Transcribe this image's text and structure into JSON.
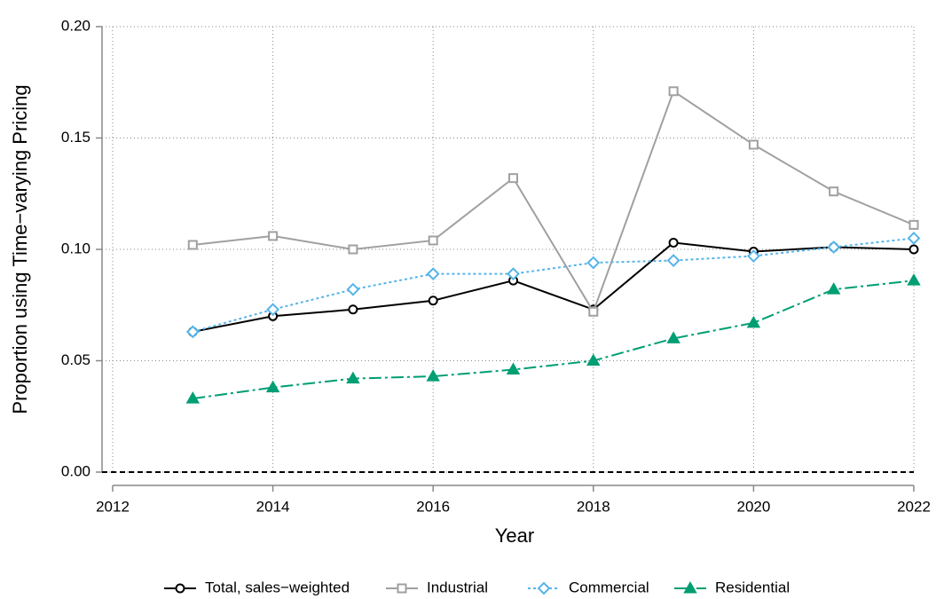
{
  "chart_data": {
    "type": "line",
    "xlabel": "Year",
    "ylabel": "Proportion using Time−varying Pricing",
    "x": [
      2013,
      2014,
      2015,
      2016,
      2017,
      2018,
      2019,
      2020,
      2021,
      2022
    ],
    "series": [
      {
        "name": "Total, sales−weighted",
        "color": "#000000",
        "marker": "circle",
        "dash": "solid",
        "values": [
          0.063,
          0.07,
          0.073,
          0.077,
          0.086,
          0.073,
          0.103,
          0.099,
          0.101,
          0.1
        ]
      },
      {
        "name": "Industrial",
        "color": "#a0a0a0",
        "marker": "square",
        "dash": "solid",
        "values": [
          0.102,
          0.106,
          0.1,
          0.104,
          0.132,
          0.072,
          0.171,
          0.147,
          0.126,
          0.111
        ]
      },
      {
        "name": "Commercial",
        "color": "#56b4e9",
        "marker": "diamond",
        "dash": "dotted",
        "values": [
          0.063,
          0.073,
          0.082,
          0.089,
          0.089,
          0.094,
          0.095,
          0.097,
          0.101,
          0.105
        ]
      },
      {
        "name": "Residential",
        "color": "#009e73",
        "marker": "triangle",
        "dash": "dashdot",
        "values": [
          0.033,
          0.038,
          0.042,
          0.043,
          0.046,
          0.05,
          0.06,
          0.067,
          0.082,
          0.086
        ]
      }
    ],
    "xlim": [
      2012,
      2022
    ],
    "xticks": [
      2012,
      2014,
      2016,
      2018,
      2020,
      2022
    ],
    "ylim": [
      0,
      0.2
    ],
    "yticks": [
      {
        "value": 0,
        "label": "0.00"
      },
      {
        "value": 0.05,
        "label": "0.05"
      },
      {
        "value": 0.1,
        "label": "0.10"
      },
      {
        "value": 0.15,
        "label": "0.15"
      },
      {
        "value": 0.2,
        "label": "0.20"
      }
    ],
    "hline": 0,
    "grid": true,
    "legend": "bottom"
  }
}
